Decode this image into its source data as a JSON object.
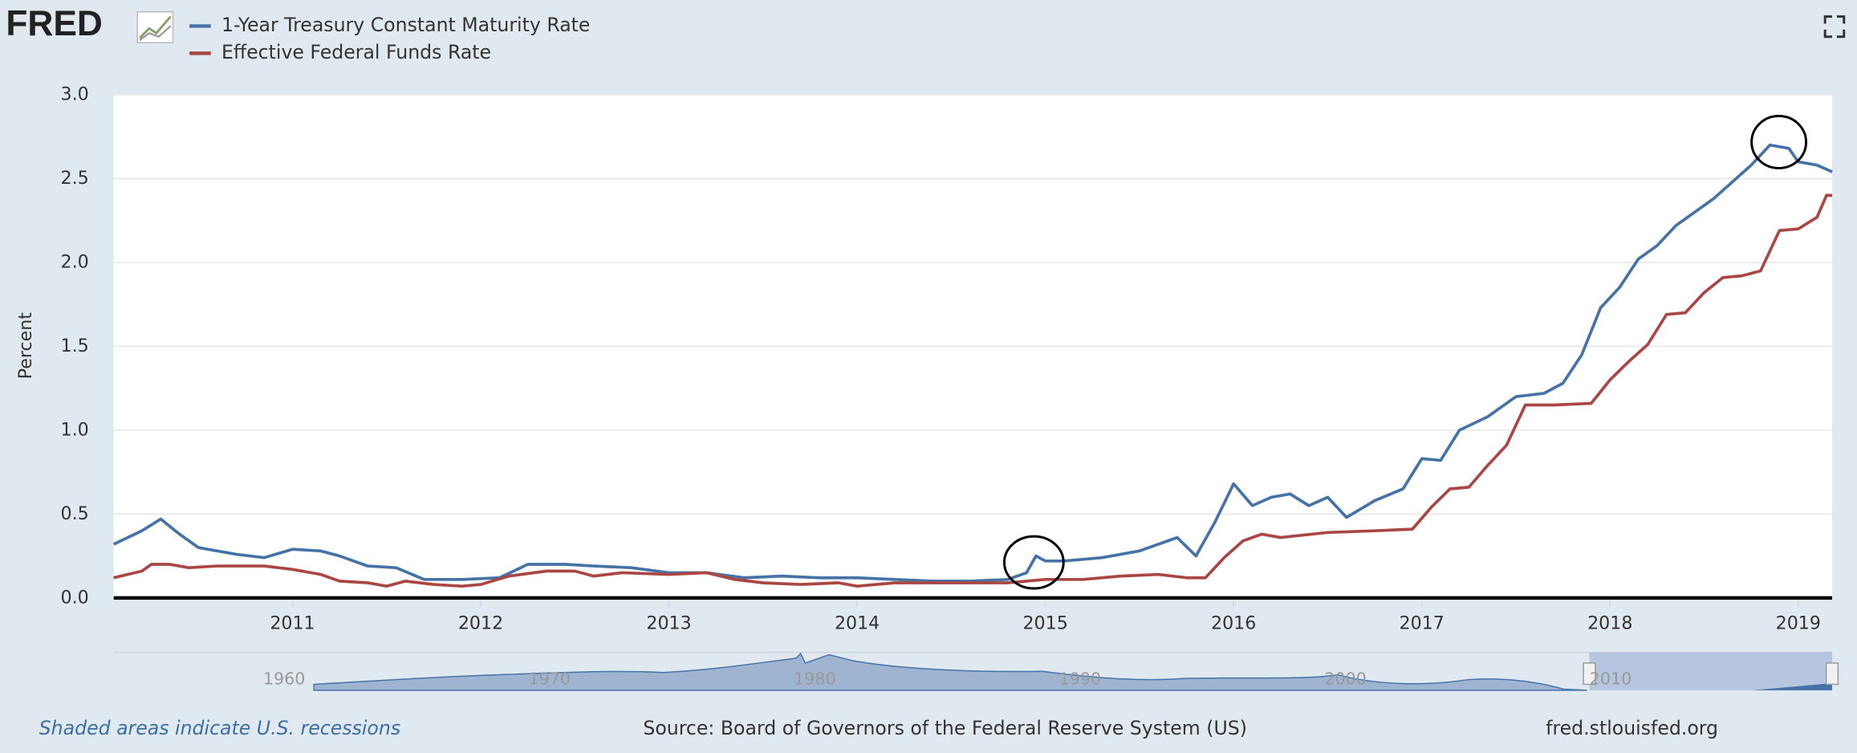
{
  "logo": "FRED",
  "chart_data": {
    "type": "line",
    "y_label": "Percent",
    "note": "Shaded areas indicate U.S. recessions",
    "source": "Source: Board of Governors of the Federal Reserve System (US)",
    "site": "fred.stlouisfed.org",
    "xlim": [
      2010.05,
      2019.18
    ],
    "xticks": [
      2011,
      2012,
      2013,
      2014,
      2015,
      2016,
      2017,
      2018,
      2019
    ],
    "ylim": [
      0,
      3
    ],
    "yticks": [
      {
        "value": 0,
        "label": "0.0"
      },
      {
        "value": 0.5,
        "label": "0.5"
      },
      {
        "value": 1,
        "label": "1.0"
      },
      {
        "value": 1.5,
        "label": "1.5"
      },
      {
        "value": 2,
        "label": "2.0"
      },
      {
        "value": 2.5,
        "label": "2.5"
      },
      {
        "value": 3,
        "label": "3.0"
      }
    ],
    "grid": true,
    "navigator_xticks": [
      1960,
      1970,
      1980,
      1990,
      2000,
      2010
    ],
    "series": [
      {
        "name": "1-Year Treasury Constant Maturity Rate",
        "color": "#4572a7",
        "x": [
          2010.05,
          2010.2,
          2010.3,
          2010.4,
          2010.5,
          2010.7,
          2010.85,
          2011.0,
          2011.15,
          2011.25,
          2011.4,
          2011.55,
          2011.7,
          2011.9,
          2012.1,
          2012.25,
          2012.45,
          2012.6,
          2012.8,
          2013.0,
          2013.2,
          2013.4,
          2013.6,
          2013.8,
          2014.0,
          2014.2,
          2014.4,
          2014.6,
          2014.8,
          2014.9,
          2014.95,
          2015.0,
          2015.1,
          2015.3,
          2015.5,
          2015.7,
          2015.8,
          2015.9,
          2016.0,
          2016.1,
          2016.2,
          2016.3,
          2016.4,
          2016.5,
          2016.6,
          2016.75,
          2016.9,
          2017.0,
          2017.1,
          2017.2,
          2017.35,
          2017.5,
          2017.65,
          2017.75,
          2017.85,
          2017.95,
          2018.05,
          2018.15,
          2018.25,
          2018.35,
          2018.45,
          2018.55,
          2018.65,
          2018.75,
          2018.85,
          2018.95,
          2019.0,
          2019.1,
          2019.18
        ],
        "values": [
          0.32,
          0.4,
          0.47,
          0.38,
          0.3,
          0.26,
          0.24,
          0.29,
          0.28,
          0.25,
          0.19,
          0.18,
          0.11,
          0.11,
          0.12,
          0.2,
          0.2,
          0.19,
          0.18,
          0.15,
          0.15,
          0.12,
          0.13,
          0.12,
          0.12,
          0.11,
          0.1,
          0.1,
          0.11,
          0.15,
          0.25,
          0.22,
          0.22,
          0.24,
          0.28,
          0.36,
          0.25,
          0.45,
          0.68,
          0.55,
          0.6,
          0.62,
          0.55,
          0.6,
          0.48,
          0.58,
          0.65,
          0.83,
          0.82,
          1.0,
          1.08,
          1.2,
          1.22,
          1.28,
          1.45,
          1.73,
          1.85,
          2.02,
          2.1,
          2.22,
          2.3,
          2.38,
          2.48,
          2.58,
          2.7,
          2.68,
          2.6,
          2.58,
          2.54
        ]
      },
      {
        "name": "Effective Federal Funds Rate",
        "color": "#aa4643",
        "x": [
          2010.05,
          2010.2,
          2010.25,
          2010.35,
          2010.45,
          2010.6,
          2010.85,
          2011.0,
          2011.15,
          2011.25,
          2011.4,
          2011.5,
          2011.6,
          2011.75,
          2011.9,
          2012.0,
          2012.15,
          2012.35,
          2012.5,
          2012.6,
          2012.75,
          2013.0,
          2013.2,
          2013.35,
          2013.5,
          2013.7,
          2013.9,
          2014.0,
          2014.2,
          2014.4,
          2014.6,
          2014.8,
          2015.0,
          2015.2,
          2015.4,
          2015.6,
          2015.75,
          2015.85,
          2015.95,
          2016.05,
          2016.15,
          2016.25,
          2016.5,
          2016.75,
          2016.95,
          2017.05,
          2017.15,
          2017.25,
          2017.35,
          2017.45,
          2017.55,
          2017.7,
          2017.9,
          2018.0,
          2018.1,
          2018.2,
          2018.3,
          2018.4,
          2018.5,
          2018.6,
          2018.7,
          2018.8,
          2018.9,
          2019.0,
          2019.1,
          2019.15,
          2019.18
        ],
        "values": [
          0.12,
          0.16,
          0.2,
          0.2,
          0.18,
          0.19,
          0.19,
          0.17,
          0.14,
          0.1,
          0.09,
          0.07,
          0.1,
          0.08,
          0.07,
          0.08,
          0.13,
          0.16,
          0.16,
          0.13,
          0.15,
          0.14,
          0.15,
          0.11,
          0.09,
          0.08,
          0.09,
          0.07,
          0.09,
          0.09,
          0.09,
          0.09,
          0.11,
          0.11,
          0.13,
          0.14,
          0.12,
          0.12,
          0.24,
          0.34,
          0.38,
          0.36,
          0.39,
          0.4,
          0.41,
          0.54,
          0.65,
          0.66,
          0.79,
          0.91,
          1.15,
          1.15,
          1.16,
          1.3,
          1.41,
          1.51,
          1.69,
          1.7,
          1.82,
          1.91,
          1.92,
          1.95,
          2.19,
          2.2,
          2.27,
          2.4,
          2.4
        ]
      }
    ]
  }
}
